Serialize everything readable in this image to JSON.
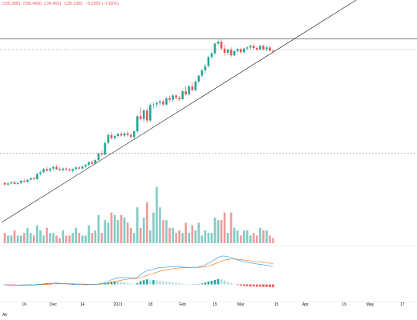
{
  "legend": {
    "open": "O35.3981",
    "high": "H36.4490",
    "low": "L34.4691",
    "close": "C35.1082",
    "change": "−0.2905 (−0.82%)"
  },
  "range_button": "All",
  "colors": {
    "up": "#26a69a",
    "down": "#ef5350",
    "up_volume": "#80cbc4",
    "down_volume": "#ef9a9a",
    "macd_line": "#2196f3",
    "signal_line": "#ff6d00",
    "trendline": "#131722"
  },
  "chart_data": {
    "type": "candlestick",
    "x_ticks": [
      "16",
      "Dec",
      "14",
      "2021",
      "18",
      "Feb",
      "15",
      "Mar",
      "15",
      "Apr",
      "19",
      "May",
      "17"
    ],
    "candles": [
      [
        1,
        1.2,
        1.4,
        0.8,
        0.9
      ],
      [
        2,
        0.9,
        1.3,
        0.7,
        1.1
      ],
      [
        3,
        1.1,
        1.5,
        0.9,
        1.3
      ],
      [
        4,
        1.3,
        1.7,
        1.1,
        1.0
      ],
      [
        5,
        1.0,
        1.4,
        0.8,
        1.2
      ],
      [
        6,
        1.2,
        1.8,
        1.0,
        1.6
      ],
      [
        7,
        1.6,
        2.0,
        1.3,
        1.4
      ],
      [
        8,
        1.4,
        1.9,
        1.2,
        1.8
      ],
      [
        9,
        1.8,
        2.3,
        1.6,
        2.1
      ],
      [
        10,
        2.1,
        2.4,
        1.7,
        1.9
      ],
      [
        11,
        1.9,
        3.1,
        1.7,
        2.9
      ],
      [
        12,
        2.9,
        3.5,
        2.6,
        3.2
      ],
      [
        13,
        3.2,
        4.0,
        3.0,
        3.8
      ],
      [
        14,
        3.8,
        4.3,
        3.3,
        3.5
      ],
      [
        15,
        3.5,
        4.1,
        3.2,
        3.9
      ],
      [
        16,
        3.9,
        4.4,
        3.6,
        4.2
      ],
      [
        17,
        4.2,
        4.6,
        3.6,
        3.8
      ],
      [
        18,
        3.8,
        4.2,
        3.4,
        3.6
      ],
      [
        19,
        3.6,
        4.1,
        3.3,
        3.9
      ],
      [
        20,
        3.9,
        4.2,
        3.5,
        3.7
      ],
      [
        21,
        3.7,
        4.0,
        3.4,
        3.5
      ],
      [
        22,
        3.5,
        3.9,
        3.2,
        3.8
      ],
      [
        23,
        3.8,
        4.3,
        3.6,
        4.1
      ],
      [
        24,
        4.1,
        4.4,
        3.7,
        3.9
      ],
      [
        25,
        3.9,
        4.5,
        3.7,
        4.3
      ],
      [
        26,
        4.3,
        4.8,
        4.0,
        4.6
      ],
      [
        27,
        4.6,
        5.3,
        4.4,
        5.1
      ],
      [
        28,
        5.1,
        5.5,
        4.6,
        4.8
      ],
      [
        29,
        4.8,
        5.7,
        4.7,
        5.5
      ],
      [
        30,
        5.5,
        6.9,
        5.3,
        6.7
      ],
      [
        31,
        6.7,
        7.3,
        6.2,
        6.5
      ],
      [
        32,
        6.5,
        8.9,
        6.4,
        8.7
      ],
      [
        33,
        8.7,
        10.5,
        8.4,
        10.2
      ],
      [
        34,
        10.2,
        10.8,
        9.3,
        9.6
      ],
      [
        35,
        9.6,
        10.4,
        9.2,
        10.0
      ],
      [
        36,
        10.0,
        10.6,
        9.6,
        10.4
      ],
      [
        37,
        10.4,
        10.8,
        9.8,
        10.1
      ],
      [
        38,
        10.1,
        10.7,
        9.7,
        10.5
      ],
      [
        39,
        10.5,
        10.9,
        9.9,
        10.2
      ],
      [
        40,
        10.2,
        10.6,
        9.6,
        9.8
      ],
      [
        41,
        9.8,
        11.0,
        9.2,
        10.9
      ],
      [
        42,
        10.9,
        13.9,
        10.6,
        13.7
      ],
      [
        43,
        13.7,
        15.3,
        12.9,
        13.2
      ],
      [
        44,
        13.2,
        15.0,
        12.6,
        14.8
      ],
      [
        45,
        14.8,
        15.2,
        12.4,
        12.9
      ],
      [
        46,
        12.9,
        16.2,
        12.6,
        15.8
      ],
      [
        47,
        15.8,
        16.3,
        15.1,
        15.9
      ],
      [
        48,
        15.9,
        16.6,
        15.3,
        16.2
      ],
      [
        49,
        16.2,
        16.9,
        15.6,
        16.5
      ],
      [
        50,
        16.5,
        16.9,
        15.6,
        15.9
      ],
      [
        51,
        15.9,
        17.3,
        15.7,
        17.1
      ],
      [
        52,
        17.1,
        17.5,
        16.4,
        16.8
      ],
      [
        53,
        16.8,
        17.9,
        16.5,
        17.6
      ],
      [
        54,
        17.6,
        17.9,
        16.9,
        17.2
      ],
      [
        55,
        17.2,
        17.5,
        16.5,
        16.9
      ],
      [
        56,
        16.9,
        18.6,
        16.7,
        18.4
      ],
      [
        57,
        18.4,
        19.4,
        17.6,
        17.8
      ],
      [
        58,
        17.8,
        19.6,
        17.6,
        19.3
      ],
      [
        59,
        19.3,
        20.1,
        18.4,
        18.6
      ],
      [
        60,
        18.6,
        20.5,
        18.4,
        20.2
      ],
      [
        61,
        20.2,
        21.6,
        19.9,
        21.3
      ],
      [
        62,
        21.3,
        22.6,
        20.9,
        22.3
      ],
      [
        63,
        22.3,
        23.5,
        21.7,
        23.1
      ],
      [
        64,
        23.1,
        25.1,
        22.8,
        24.8
      ],
      [
        65,
        24.8,
        25.8,
        24.4,
        25.5
      ],
      [
        66,
        25.5,
        27.6,
        25.2,
        27.3
      ],
      [
        67,
        27.3,
        28.1,
        26.9,
        27.7
      ],
      [
        68,
        27.7,
        28.3,
        26.1,
        26.4
      ],
      [
        69,
        26.4,
        27.1,
        25.0,
        25.6
      ],
      [
        70,
        25.6,
        26.4,
        25.1,
        26.2
      ],
      [
        71,
        26.2,
        26.6,
        24.8,
        25.1
      ],
      [
        72,
        25.1,
        26.1,
        24.9,
        25.9
      ],
      [
        73,
        25.9,
        26.6,
        25.6,
        26.3
      ],
      [
        74,
        26.3,
        26.6,
        25.4,
        25.7
      ],
      [
        75,
        25.7,
        26.6,
        25.4,
        26.4
      ],
      [
        76,
        26.4,
        26.8,
        26.0,
        26.6
      ],
      [
        77,
        26.6,
        27.1,
        26.2,
        26.9
      ],
      [
        78,
        26.9,
        27.2,
        26.2,
        26.5
      ],
      [
        79,
        26.5,
        26.9,
        25.9,
        26.2
      ],
      [
        80,
        26.2,
        27.1,
        26.1,
        26.9
      ],
      [
        81,
        26.9,
        27.1,
        26.0,
        26.3
      ],
      [
        82,
        26.3,
        26.9,
        25.8,
        26.6
      ],
      [
        83,
        26.6,
        26.8,
        25.8,
        26.0
      ],
      [
        84,
        26.0,
        26.2,
        25.5,
        25.8
      ]
    ],
    "volume": [
      4,
      3,
      3,
      5,
      3,
      3,
      4,
      6,
      4,
      3,
      7,
      5,
      3,
      6,
      4,
      4,
      3,
      2,
      5,
      3,
      3,
      4,
      6,
      4,
      3,
      3,
      7,
      4,
      5,
      11,
      4,
      9,
      8,
      12,
      11,
      9,
      11,
      10,
      8,
      6,
      4,
      14,
      6,
      10,
      16,
      5,
      12,
      22,
      14,
      9,
      9,
      6,
      6,
      4,
      5,
      4,
      8,
      4,
      7,
      5,
      8,
      3,
      5,
      4,
      4,
      10,
      9,
      9,
      12,
      4,
      12,
      6,
      5,
      3,
      5,
      5,
      3,
      4,
      3,
      6,
      5,
      5,
      3,
      2
    ],
    "macd": [
      -0.05,
      -0.06,
      -0.07,
      -0.08,
      -0.08,
      -0.07,
      -0.07,
      -0.06,
      -0.05,
      -0.05,
      -0.02,
      0.01,
      0.05,
      0.09,
      0.1,
      0.12,
      0.13,
      0.11,
      0.08,
      0.06,
      0.04,
      0.02,
      0.01,
      0,
      -0.02,
      -0.03,
      -0.02,
      -0.01,
      -0.01,
      0.05,
      0.1,
      0.18,
      0.3,
      0.45,
      0.55,
      0.62,
      0.66,
      0.66,
      0.66,
      0.62,
      0.6,
      0.68,
      0.95,
      1.15,
      1.35,
      1.35,
      1.48,
      1.56,
      1.62,
      1.65,
      1.66,
      1.7,
      1.71,
      1.72,
      1.71,
      1.66,
      1.65,
      1.64,
      1.65,
      1.62,
      1.68,
      1.75,
      1.88,
      2.05,
      2.2,
      2.4,
      2.6,
      2.72,
      2.72,
      2.66,
      2.58,
      2.46,
      2.35,
      2.28,
      2.2,
      2.13,
      2.07,
      2.02,
      1.97,
      1.93,
      1.88,
      1.83,
      1.78,
      1.73
    ],
    "signal": [
      -0.05,
      -0.05,
      -0.06,
      -0.06,
      -0.07,
      -0.07,
      -0.07,
      -0.07,
      -0.07,
      -0.06,
      -0.05,
      -0.04,
      -0.02,
      0.01,
      0.02,
      0.04,
      0.06,
      0.07,
      0.07,
      0.07,
      0.06,
      0.06,
      0.05,
      0.04,
      0.03,
      0.02,
      0.01,
      0.01,
      0,
      0.01,
      0.03,
      0.06,
      0.11,
      0.18,
      0.25,
      0.33,
      0.4,
      0.45,
      0.5,
      0.53,
      0.54,
      0.57,
      0.65,
      0.75,
      0.87,
      0.97,
      1.07,
      1.17,
      1.26,
      1.34,
      1.4,
      1.46,
      1.51,
      1.55,
      1.58,
      1.6,
      1.61,
      1.62,
      1.63,
      1.63,
      1.64,
      1.66,
      1.7,
      1.77,
      1.86,
      1.98,
      2.1,
      2.23,
      2.33,
      2.4,
      2.44,
      2.44,
      2.42,
      2.39,
      2.35,
      2.31,
      2.27,
      2.23,
      2.19,
      2.15,
      2.12,
      2.08,
      2.05,
      2.01
    ],
    "y_axis": {
      "price_range": [
        -8,
        34
      ],
      "volume_range": [
        0,
        25
      ],
      "macd_range": [
        -1.5,
        3.5
      ]
    },
    "horizontal_lines": [
      {
        "price": 28.2,
        "style": "solid"
      },
      {
        "price": 26.2,
        "style": "dotted"
      },
      {
        "price": 6.8,
        "style": "dashed"
      }
    ],
    "trendline": {
      "from": [
        0,
        -6.2
      ],
      "to": [
        85,
        26.1
      ],
      "extended": true
    }
  }
}
